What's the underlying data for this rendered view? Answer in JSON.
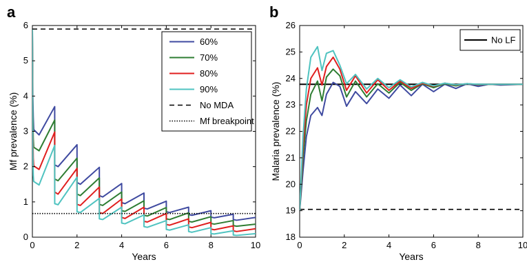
{
  "chart_data": [
    {
      "type": "line",
      "panel_label": "a",
      "xlabel": "Years",
      "ylabel": "Mf prevalence (%)",
      "xlim": [
        0,
        10
      ],
      "ylim": [
        0,
        6
      ],
      "xticks": [
        0,
        2,
        4,
        6,
        8,
        10
      ],
      "yticks": [
        0,
        1,
        2,
        3,
        4,
        5,
        6
      ],
      "legend_position": "top-right",
      "series": [
        {
          "name": "60%",
          "color": "#3f4aa0",
          "style": "solid",
          "x": [
            0,
            0.02,
            0.04,
            0.06,
            0.3,
            1,
            1.001,
            1.15,
            2,
            2.001,
            2.15,
            3,
            3.001,
            3.15,
            4,
            4.001,
            4.15,
            5,
            5.001,
            5.15,
            6,
            6.001,
            6.15,
            7,
            7.001,
            7.15,
            8,
            8.001,
            8.15,
            9,
            9.001,
            9.15,
            10
          ],
          "y": [
            5.9,
            4.0,
            3.4,
            3.05,
            2.9,
            3.7,
            2.05,
            2.0,
            2.62,
            1.55,
            1.5,
            1.98,
            1.18,
            1.14,
            1.52,
            0.98,
            0.95,
            1.25,
            0.82,
            0.8,
            1.02,
            0.72,
            0.7,
            0.85,
            0.64,
            0.62,
            0.75,
            0.57,
            0.55,
            0.65,
            0.5,
            0.48,
            0.56
          ]
        },
        {
          "name": "70%",
          "color": "#2e7d32",
          "style": "solid",
          "x": [
            0,
            0.02,
            0.04,
            0.06,
            0.3,
            1,
            1.001,
            1.15,
            2,
            2.001,
            2.15,
            3,
            3.001,
            3.15,
            4,
            4.001,
            4.15,
            5,
            5.001,
            5.15,
            6,
            6.001,
            6.15,
            7,
            7.001,
            7.15,
            8,
            8.001,
            8.15,
            9,
            9.001,
            9.15,
            10
          ],
          "y": [
            5.9,
            3.5,
            2.8,
            2.55,
            2.45,
            3.32,
            1.65,
            1.6,
            2.24,
            1.22,
            1.18,
            1.68,
            0.93,
            0.9,
            1.28,
            0.75,
            0.73,
            1.03,
            0.62,
            0.6,
            0.84,
            0.52,
            0.5,
            0.69,
            0.45,
            0.43,
            0.58,
            0.39,
            0.37,
            0.47,
            0.33,
            0.31,
            0.37
          ]
        },
        {
          "name": "80%",
          "color": "#e01e1e",
          "style": "solid",
          "x": [
            0,
            0.02,
            0.04,
            0.06,
            0.3,
            1,
            1.001,
            1.15,
            2,
            2.001,
            2.15,
            3,
            3.001,
            3.15,
            4,
            4.001,
            4.15,
            5,
            5.001,
            5.15,
            6,
            6.001,
            6.15,
            7,
            7.001,
            7.15,
            8,
            8.001,
            8.15,
            9,
            9.001,
            9.15,
            10
          ],
          "y": [
            5.9,
            3.0,
            2.25,
            2.02,
            1.92,
            2.98,
            1.28,
            1.22,
            1.95,
            0.93,
            0.9,
            1.42,
            0.7,
            0.67,
            1.08,
            0.56,
            0.53,
            0.85,
            0.45,
            0.43,
            0.67,
            0.36,
            0.34,
            0.52,
            0.29,
            0.27,
            0.42,
            0.23,
            0.21,
            0.32,
            0.18,
            0.16,
            0.24
          ]
        },
        {
          "name": "90%",
          "color": "#4fc3c0",
          "style": "solid",
          "x": [
            0,
            0.02,
            0.04,
            0.06,
            0.3,
            1,
            1.001,
            1.15,
            2,
            2.001,
            2.15,
            3,
            3.001,
            3.15,
            4,
            4.001,
            4.15,
            5,
            5.001,
            5.15,
            6,
            6.001,
            6.15,
            7,
            7.001,
            7.15,
            8,
            8.001,
            8.15,
            9,
            9.001,
            9.15,
            10
          ],
          "y": [
            5.9,
            2.4,
            1.75,
            1.58,
            1.48,
            2.6,
            0.95,
            0.92,
            1.7,
            0.72,
            0.7,
            1.1,
            0.52,
            0.5,
            0.85,
            0.4,
            0.38,
            0.63,
            0.3,
            0.28,
            0.47,
            0.22,
            0.2,
            0.35,
            0.16,
            0.14,
            0.27,
            0.1,
            0.09,
            0.18,
            0.06,
            0.05,
            0.1
          ]
        },
        {
          "name": "No MDA",
          "color": "#000000",
          "style": "dashed",
          "x": [
            0,
            10
          ],
          "y": [
            5.9,
            5.9
          ]
        },
        {
          "name": "Mf breakpoint",
          "color": "#000000",
          "style": "dotted",
          "x": [
            0,
            10
          ],
          "y": [
            0.67,
            0.67
          ]
        }
      ]
    },
    {
      "type": "line",
      "panel_label": "b",
      "xlabel": "Years",
      "ylabel": "Malaria prevalence (%)",
      "xlim": [
        0,
        10
      ],
      "ylim": [
        18,
        26
      ],
      "xticks": [
        0,
        2,
        4,
        6,
        8,
        10
      ],
      "yticks": [
        18,
        19,
        20,
        21,
        22,
        23,
        24,
        25,
        26
      ],
      "legend_position": "top-right",
      "series": [
        {
          "name": "No LF",
          "color": "#000000",
          "style": "solid",
          "x": [
            0,
            10
          ],
          "y": [
            23.78,
            23.78
          ]
        },
        {
          "color": "#000000",
          "style": "dashed",
          "x": [
            0,
            10
          ],
          "y": [
            19.05,
            19.05
          ]
        },
        {
          "color": "#3f4aa0",
          "style": "solid",
          "x": [
            0,
            0.15,
            0.3,
            0.5,
            0.8,
            1.0,
            1.2,
            1.5,
            1.8,
            2.1,
            2.5,
            3.0,
            3.5,
            4.0,
            4.5,
            5.0,
            5.5,
            6.0,
            6.5,
            7.0,
            7.5,
            8.0,
            8.5,
            9.0,
            10
          ],
          "y": [
            19.0,
            20.5,
            21.8,
            22.6,
            22.9,
            22.6,
            23.4,
            23.85,
            23.7,
            22.95,
            23.5,
            23.05,
            23.6,
            23.25,
            23.75,
            23.35,
            23.78,
            23.5,
            23.78,
            23.62,
            23.8,
            23.7,
            23.78,
            23.75,
            23.78
          ]
        },
        {
          "color": "#2e7d32",
          "style": "solid",
          "x": [
            0,
            0.15,
            0.3,
            0.5,
            0.8,
            1.0,
            1.2,
            1.5,
            1.8,
            2.1,
            2.5,
            3.0,
            3.5,
            4.0,
            4.5,
            5.0,
            5.5,
            6.0,
            6.5,
            7.0,
            7.5,
            8.0,
            8.5,
            9.0,
            10
          ],
          "y": [
            19.0,
            21.0,
            22.4,
            23.4,
            23.9,
            23.15,
            24.05,
            24.35,
            24.1,
            23.3,
            23.9,
            23.3,
            23.8,
            23.45,
            23.85,
            23.55,
            23.8,
            23.65,
            23.8,
            23.72,
            23.8,
            23.76,
            23.78,
            23.78,
            23.78
          ]
        },
        {
          "color": "#e01e1e",
          "style": "solid",
          "x": [
            0,
            0.15,
            0.3,
            0.5,
            0.8,
            1.0,
            1.2,
            1.5,
            1.8,
            2.1,
            2.5,
            3.0,
            3.5,
            4.0,
            4.5,
            5.0,
            5.5,
            6.0,
            6.5,
            7.0,
            7.5,
            8.0,
            8.5,
            9.0,
            10
          ],
          "y": [
            19.0,
            21.4,
            23.0,
            24.0,
            24.4,
            23.75,
            24.45,
            24.8,
            24.35,
            23.55,
            24.1,
            23.45,
            23.95,
            23.55,
            23.9,
            23.62,
            23.82,
            23.7,
            23.82,
            23.75,
            23.8,
            23.77,
            23.78,
            23.78,
            23.78
          ]
        },
        {
          "color": "#4fc3c0",
          "style": "solid",
          "x": [
            0,
            0.15,
            0.3,
            0.5,
            0.8,
            1.0,
            1.2,
            1.5,
            1.8,
            2.1,
            2.5,
            3.0,
            3.5,
            4.0,
            4.5,
            5.0,
            5.5,
            6.0,
            6.5,
            7.0,
            7.5,
            8.0,
            8.5,
            9.0,
            10
          ],
          "y": [
            19.0,
            21.8,
            23.6,
            24.8,
            25.2,
            24.3,
            24.95,
            25.05,
            24.5,
            23.8,
            24.15,
            23.6,
            24.0,
            23.65,
            23.95,
            23.68,
            23.85,
            23.72,
            23.82,
            23.76,
            23.8,
            23.78,
            23.78,
            23.78,
            23.78
          ]
        }
      ]
    }
  ]
}
